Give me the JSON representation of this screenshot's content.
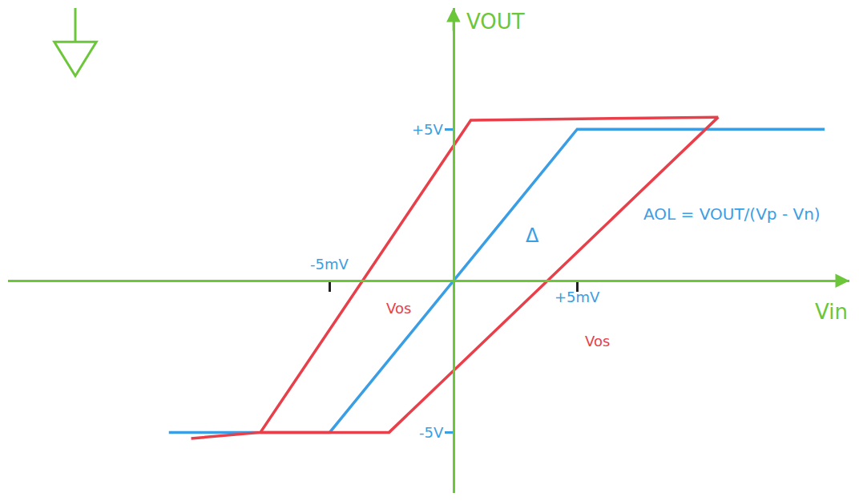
{
  "chart_data": {
    "type": "line",
    "xlabel": "Vin",
    "ylabel": "VOUT",
    "xlim": [
      -18,
      16
    ],
    "ylim": [
      -7,
      9
    ],
    "xticks": [
      {
        "value": -5,
        "label": "-5mV"
      },
      {
        "value": 5,
        "label": "+5mV"
      }
    ],
    "yticks": [
      {
        "value": -5,
        "label": "-5V"
      },
      {
        "value": 5,
        "label": "+5V"
      }
    ],
    "grid": false,
    "series": [
      {
        "color": "#3a9ee4",
        "x": [
          -11.5,
          -5,
          5,
          15
        ],
        "values": [
          -5,
          -5,
          5,
          5
        ]
      },
      {
        "color": "#e8404a",
        "x": [
          -10.6,
          -7.8,
          0.7,
          10.7
        ],
        "values": [
          -5.2,
          -5,
          5.3,
          5.4
        ]
      },
      {
        "color": "#e8404a",
        "x": [
          -7.8,
          -2.6,
          10.7
        ],
        "values": [
          -5,
          -5,
          5.4
        ]
      }
    ],
    "annotations": [
      {
        "text": "Vos",
        "color": "#e8404a"
      },
      {
        "text": "Vos",
        "color": "#e8404a"
      },
      {
        "text": "Δ",
        "color": "#3a9ee4"
      },
      {
        "text": "AOL = VOUT/(Vp - Vn)",
        "color": "#3a9ee4"
      }
    ]
  }
}
